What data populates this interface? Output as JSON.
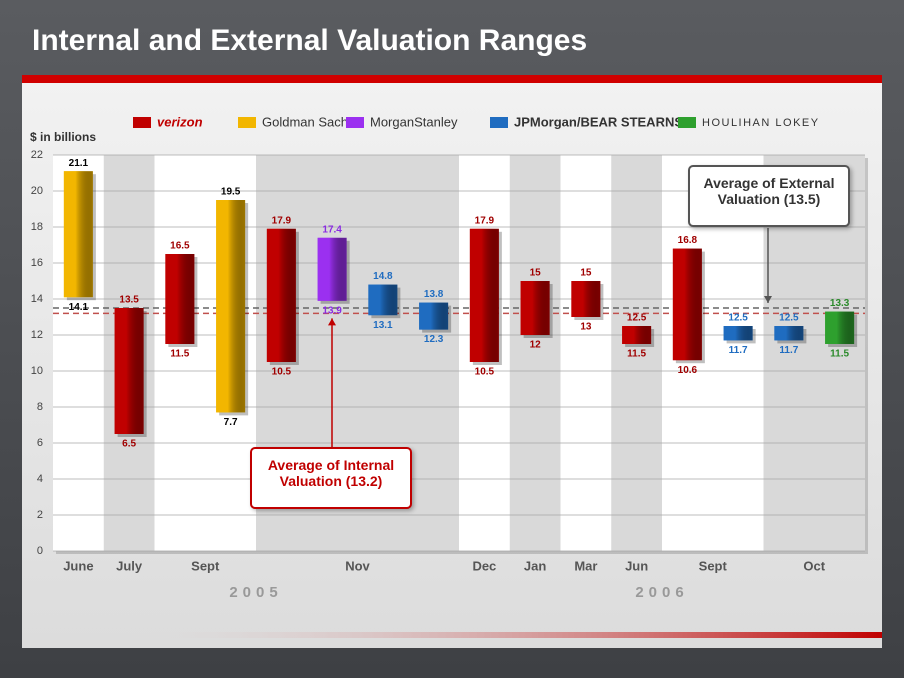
{
  "chart_data": {
    "type": "range-bar",
    "title": "Internal and External Valuation Ranges",
    "y_label": "$ in billions",
    "categories": [
      "June",
      "July",
      "Sept",
      null,
      "Nov",
      null,
      null,
      null,
      "Dec",
      "Jan",
      "Mar",
      "Jun",
      "Sept",
      null,
      "Oct",
      null
    ],
    "years": [
      "2005",
      null,
      null,
      null,
      null,
      null,
      null,
      null,
      "2006",
      null,
      null,
      null,
      null,
      null,
      null,
      null
    ],
    "ylim": [
      0,
      22
    ],
    "yticks": [
      0,
      2,
      4,
      6,
      8,
      10,
      12,
      14,
      16,
      18,
      20,
      22
    ],
    "grid": true,
    "series": [
      {
        "name": "verizon",
        "color": "#c00000",
        "label_color": "#a00000",
        "low": [
          null,
          6.5,
          11.5,
          null,
          10.5,
          null,
          null,
          null,
          10.5,
          12,
          13,
          11.5,
          10.6,
          null,
          null,
          null
        ],
        "high": [
          null,
          13.5,
          16.5,
          null,
          17.9,
          null,
          null,
          null,
          17.9,
          15,
          15,
          12.5,
          16.8,
          null,
          null,
          null
        ]
      },
      {
        "name": "Goldman Sachs",
        "color": "#f2b600",
        "label_color": "#000000",
        "low": [
          14.1,
          null,
          null,
          7.7,
          null,
          null,
          null,
          null,
          null,
          null,
          null,
          null,
          null,
          null,
          null,
          null
        ],
        "high": [
          21.1,
          null,
          null,
          19.5,
          null,
          null,
          null,
          null,
          null,
          null,
          null,
          null,
          null,
          null,
          null,
          null
        ]
      },
      {
        "name": "MorganStanley",
        "color": "#9b30f0",
        "label_color": "#8a2be2",
        "low": [
          null,
          null,
          null,
          null,
          null,
          13.9,
          null,
          null,
          null,
          null,
          null,
          null,
          null,
          null,
          null,
          null
        ],
        "high": [
          null,
          null,
          null,
          null,
          null,
          17.4,
          null,
          null,
          null,
          null,
          null,
          null,
          null,
          null,
          null,
          null
        ]
      },
      {
        "name": "JPMorgan/BEAR STEARNS",
        "color": "#1f6cc0",
        "label_color": "#1f6cc0",
        "low": [
          null,
          null,
          null,
          null,
          null,
          null,
          13.1,
          12.3,
          null,
          null,
          null,
          null,
          null,
          11.7,
          11.7,
          null
        ],
        "high": [
          null,
          null,
          null,
          null,
          null,
          null,
          14.8,
          13.8,
          null,
          null,
          null,
          null,
          null,
          12.5,
          12.5,
          null
        ]
      },
      {
        "name": "HOULIHAN LOKEY",
        "color": "#2ea02e",
        "label_color": "#2a8a2a",
        "low": [
          null,
          null,
          null,
          null,
          null,
          null,
          null,
          null,
          null,
          null,
          null,
          null,
          null,
          null,
          null,
          11.5
        ],
        "high": [
          null,
          null,
          null,
          null,
          null,
          null,
          null,
          null,
          null,
          null,
          null,
          null,
          null,
          null,
          null,
          13.3
        ]
      }
    ],
    "reference_lines": [
      {
        "value": 13.2,
        "color": "#c0504d",
        "label": "Average of Internal Valuation (13.2)"
      },
      {
        "value": 13.5,
        "color": "#666666",
        "label": "Average of External Valuation (13.5)"
      }
    ]
  }
}
